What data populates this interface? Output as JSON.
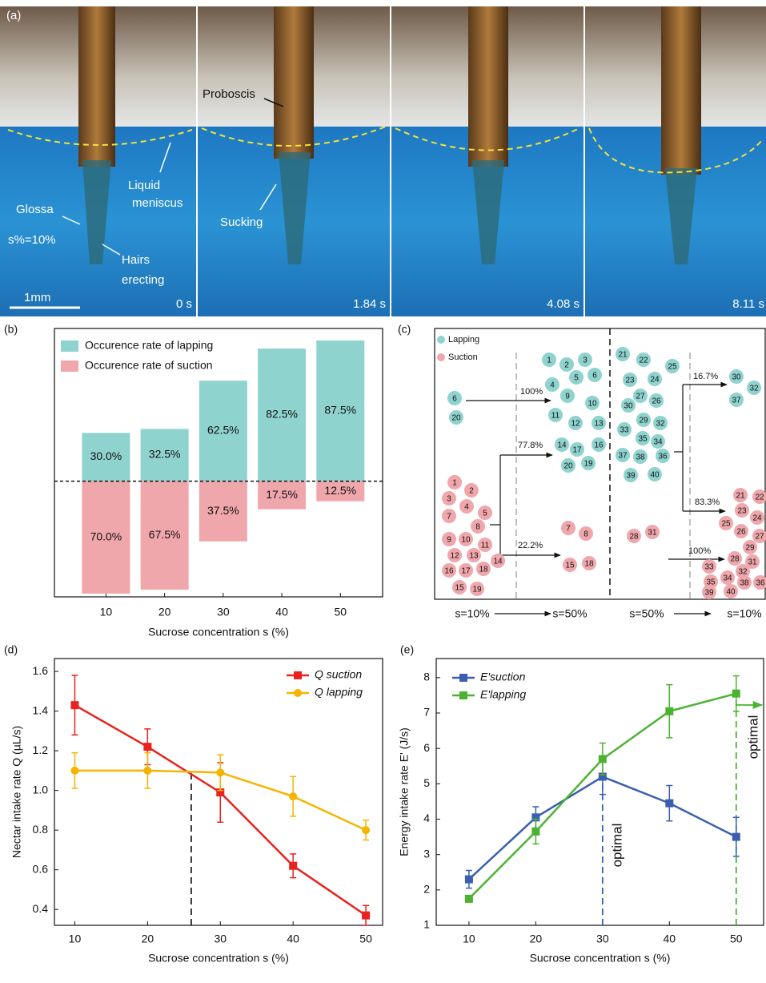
{
  "photo": {
    "panel_label": "(a)",
    "labels": [
      "Proboscis",
      "Liquid",
      "meniscus",
      "Glossa",
      "Sucking",
      "s%=10%",
      "Hairs",
      "erecting",
      "1mm"
    ],
    "times": [
      "0 s",
      "1.84 s",
      "4.08 s",
      "8.11 s"
    ]
  },
  "diagram": {
    "panel_label": "(c)",
    "legend": [
      "Lapping",
      "Suction"
    ],
    "lapping_nodes": [
      6,
      20,
      1,
      2,
      3,
      5,
      6,
      4,
      9,
      10,
      11,
      12,
      13,
      14,
      17,
      16,
      20,
      19,
      21,
      22,
      25,
      23,
      24,
      27,
      26,
      30,
      33,
      29,
      32,
      35,
      34,
      37,
      38,
      36,
      39,
      40,
      30,
      32,
      37
    ],
    "suction_nodes": [
      1,
      2,
      3,
      4,
      7,
      5,
      8,
      9,
      10,
      11,
      12,
      13,
      14,
      16,
      17,
      18,
      15,
      19,
      7,
      8,
      15,
      18,
      28,
      31,
      21,
      22,
      23,
      24,
      25,
      26,
      27,
      29,
      28,
      31,
      33,
      32,
      34,
      35,
      38,
      36,
      39,
      40
    ],
    "arrow_labels": [
      "100%",
      "77.8%",
      "22.2%",
      "16.7%",
      "83.3%",
      "100%"
    ],
    "axis_labels": [
      "s=10%",
      "s=50%",
      "s=50%",
      "s=10%"
    ]
  },
  "chart_data": [
    {
      "type": "diverging-bar",
      "panel_label": "(b)",
      "xlabel": "Sucrose concentration s (%)",
      "categories": [
        10,
        20,
        30,
        40,
        50
      ],
      "ylim": [
        -72,
        95
      ],
      "series": [
        {
          "name": "Occurence rate of lapping",
          "color": "#8fd3cf",
          "values": [
            30,
            32.5,
            62.5,
            82.5,
            87.5
          ],
          "value_labels": [
            "30.0%",
            "32.5%",
            "62.5%",
            "82.5%",
            "87.5%"
          ]
        },
        {
          "name": "Occurence rate of suction",
          "color": "#f0a7ac",
          "values": [
            70,
            67.5,
            37.5,
            17.5,
            12.5
          ],
          "value_labels": [
            "70.0%",
            "67.5%",
            "37.5%",
            "17.5%",
            "12.5%"
          ]
        }
      ]
    },
    {
      "type": "line",
      "panel_label": "(d)",
      "xlabel": "Sucrose concentration s (%)",
      "ylabel": "Nectar intake rate Q (µL/s)",
      "x": [
        10,
        20,
        30,
        40,
        50
      ],
      "xlim": [
        7.2,
        52.3
      ],
      "xticks": [
        10,
        20,
        30,
        40,
        50
      ],
      "ylim": [
        0.32,
        1.665
      ],
      "yticks": [
        0.4,
        0.6,
        0.8,
        {
          "value": 1,
          "label": "1.0"
        },
        1.2,
        1.4,
        1.6
      ],
      "reference_lines": [
        {
          "x": 26,
          "y": 1.09,
          "color": "#222222"
        }
      ],
      "series": [
        {
          "name": "Q suction",
          "color": "#e8221f",
          "marker": "square",
          "values": [
            1.43,
            1.22,
            0.99,
            0.62,
            0.37
          ],
          "errors": [
            0.15,
            0.09,
            0.15,
            0.06,
            0.05
          ]
        },
        {
          "name": "Q lapping",
          "color": "#f4b400",
          "marker": "circle",
          "values": [
            1.1,
            1.1,
            1.09,
            0.97,
            0.8
          ],
          "errors": [
            0.09,
            0.09,
            0.09,
            0.1,
            0.05
          ]
        }
      ]
    },
    {
      "type": "line",
      "panel_label": "(e)",
      "xlabel": "Sucrose concentration s (%)",
      "ylabel": "Energy intake rate E' (J/s)",
      "x": [
        10,
        20,
        30,
        40,
        50
      ],
      "xlim": [
        5.1,
        54.1
      ],
      "xticks": [
        10,
        20,
        30,
        40,
        50
      ],
      "ylim": [
        1,
        8.54
      ],
      "yticks": [
        1,
        2,
        3,
        4,
        5,
        6,
        7,
        8
      ],
      "annotations": [
        "optimal",
        "optimal"
      ],
      "reference_lines": [
        {
          "x": 30,
          "y": 5.2,
          "color": "#3b5fae"
        },
        {
          "x": 50,
          "y": 7.55,
          "color": "#4cb232"
        }
      ],
      "series": [
        {
          "name": "E'suction",
          "color": "#3b5fae",
          "marker": "square",
          "values": [
            2.3,
            4.05,
            5.2,
            4.45,
            3.5
          ],
          "errors": [
            0.25,
            0.3,
            0.5,
            0.5,
            0.55
          ]
        },
        {
          "name": "E'lapping",
          "color": "#4cb232",
          "marker": "square",
          "values": [
            1.75,
            3.65,
            5.7,
            7.05,
            7.55
          ],
          "errors": [
            0.08,
            0.35,
            0.45,
            0.75,
            0.5
          ]
        }
      ]
    }
  ]
}
